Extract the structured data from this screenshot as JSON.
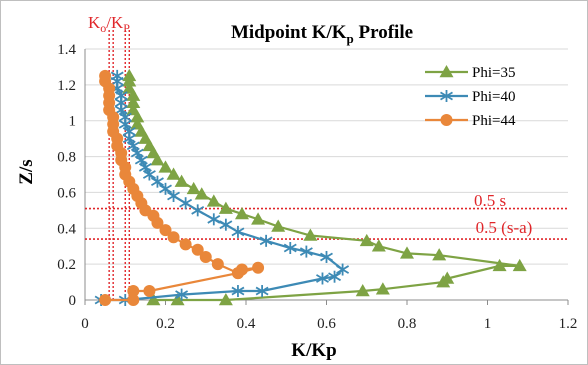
{
  "chart_data": {
    "type": "scatter",
    "title": "Midpoint K/K",
    "title_sub": "p",
    "title_tail": " Profile",
    "xlabel": "K/Kp",
    "ylabel": "Z/s",
    "xlim": [
      0,
      1.2
    ],
    "ylim": [
      0,
      1.4
    ],
    "x_ticks": [
      "0",
      "0.2",
      "0.4",
      "0.6",
      "0.8",
      "1",
      "1.2"
    ],
    "y_ticks": [
      "0",
      "0.2",
      "0.4",
      "0.6",
      "0.8",
      "1",
      "1.2",
      "1.4"
    ],
    "grid": "horizontal",
    "legend_position": "upper-right",
    "series": [
      {
        "name": "Phi=35",
        "color": "#7ea344",
        "marker": "triangle",
        "points": [
          [
            0.17,
            0
          ],
          [
            0.23,
            0
          ],
          [
            0.35,
            0
          ],
          [
            0.69,
            0.05
          ],
          [
            0.74,
            0.06
          ],
          [
            0.89,
            0.1
          ],
          [
            0.9,
            0.12
          ],
          [
            1.03,
            0.19
          ],
          [
            1.08,
            0.19
          ],
          [
            0.88,
            0.25
          ],
          [
            0.8,
            0.26
          ],
          [
            0.73,
            0.3
          ],
          [
            0.7,
            0.33
          ],
          [
            0.56,
            0.36
          ],
          [
            0.48,
            0.41
          ],
          [
            0.43,
            0.45
          ],
          [
            0.39,
            0.48
          ],
          [
            0.35,
            0.51
          ],
          [
            0.32,
            0.55
          ],
          [
            0.29,
            0.59
          ],
          [
            0.27,
            0.62
          ],
          [
            0.24,
            0.66
          ],
          [
            0.22,
            0.7
          ],
          [
            0.2,
            0.74
          ],
          [
            0.18,
            0.78
          ],
          [
            0.17,
            0.82
          ],
          [
            0.16,
            0.86
          ],
          [
            0.15,
            0.9
          ],
          [
            0.14,
            0.94
          ],
          [
            0.13,
            0.98
          ],
          [
            0.13,
            1.02
          ],
          [
            0.12,
            1.06
          ],
          [
            0.12,
            1.1
          ],
          [
            0.12,
            1.14
          ],
          [
            0.11,
            1.18
          ],
          [
            0.11,
            1.22
          ],
          [
            0.11,
            1.25
          ]
        ]
      },
      {
        "name": "Phi=40",
        "color": "#3d8ab5",
        "marker": "star",
        "points": [
          [
            0.04,
            0
          ],
          [
            0.1,
            0
          ],
          [
            0.24,
            0.03
          ],
          [
            0.38,
            0.05
          ],
          [
            0.44,
            0.05
          ],
          [
            0.59,
            0.12
          ],
          [
            0.62,
            0.13
          ],
          [
            0.64,
            0.17
          ],
          [
            0.6,
            0.24
          ],
          [
            0.55,
            0.27
          ],
          [
            0.51,
            0.29
          ],
          [
            0.45,
            0.33
          ],
          [
            0.38,
            0.38
          ],
          [
            0.35,
            0.42
          ],
          [
            0.32,
            0.45
          ],
          [
            0.28,
            0.5
          ],
          [
            0.25,
            0.54
          ],
          [
            0.22,
            0.58
          ],
          [
            0.2,
            0.62
          ],
          [
            0.18,
            0.66
          ],
          [
            0.16,
            0.7
          ],
          [
            0.15,
            0.74
          ],
          [
            0.14,
            0.78
          ],
          [
            0.13,
            0.82
          ],
          [
            0.12,
            0.86
          ],
          [
            0.11,
            0.9
          ],
          [
            0.11,
            0.94
          ],
          [
            0.1,
            0.98
          ],
          [
            0.1,
            1.02
          ],
          [
            0.09,
            1.06
          ],
          [
            0.09,
            1.1
          ],
          [
            0.09,
            1.14
          ],
          [
            0.08,
            1.18
          ],
          [
            0.08,
            1.22
          ],
          [
            0.08,
            1.25
          ]
        ]
      },
      {
        "name": "Phi=44",
        "color": "#e9873a",
        "marker": "circle",
        "points": [
          [
            0.05,
            0
          ],
          [
            0.12,
            0
          ],
          [
            0.12,
            0.05
          ],
          [
            0.16,
            0.05
          ],
          [
            0.38,
            0.15
          ],
          [
            0.43,
            0.18
          ],
          [
            0.39,
            0.17
          ],
          [
            0.38,
            0.15
          ],
          [
            0.33,
            0.2
          ],
          [
            0.3,
            0.24
          ],
          [
            0.28,
            0.28
          ],
          [
            0.25,
            0.31
          ],
          [
            0.22,
            0.35
          ],
          [
            0.2,
            0.39
          ],
          [
            0.18,
            0.43
          ],
          [
            0.17,
            0.47
          ],
          [
            0.15,
            0.5
          ],
          [
            0.14,
            0.54
          ],
          [
            0.13,
            0.58
          ],
          [
            0.12,
            0.62
          ],
          [
            0.11,
            0.66
          ],
          [
            0.1,
            0.7
          ],
          [
            0.1,
            0.74
          ],
          [
            0.09,
            0.78
          ],
          [
            0.09,
            0.82
          ],
          [
            0.08,
            0.86
          ],
          [
            0.08,
            0.9
          ],
          [
            0.07,
            0.94
          ],
          [
            0.07,
            0.98
          ],
          [
            0.07,
            1.02
          ],
          [
            0.06,
            1.06
          ],
          [
            0.06,
            1.1
          ],
          [
            0.06,
            1.14
          ],
          [
            0.06,
            1.18
          ],
          [
            0.05,
            1.22
          ],
          [
            0.05,
            1.25
          ]
        ]
      }
    ],
    "reference_lines": {
      "horizontal": [
        {
          "y": 0.51,
          "label": "0.5 s"
        },
        {
          "y": 0.34,
          "label": "0.5 (s-a)"
        }
      ],
      "vertical": [
        0.06,
        0.07,
        0.1,
        0.11
      ],
      "vertical_label": {
        "base1": "K",
        "sub1": "o",
        "sep": "/",
        "base2": "K",
        "sub2": "P"
      },
      "color": "#e0262a"
    }
  }
}
